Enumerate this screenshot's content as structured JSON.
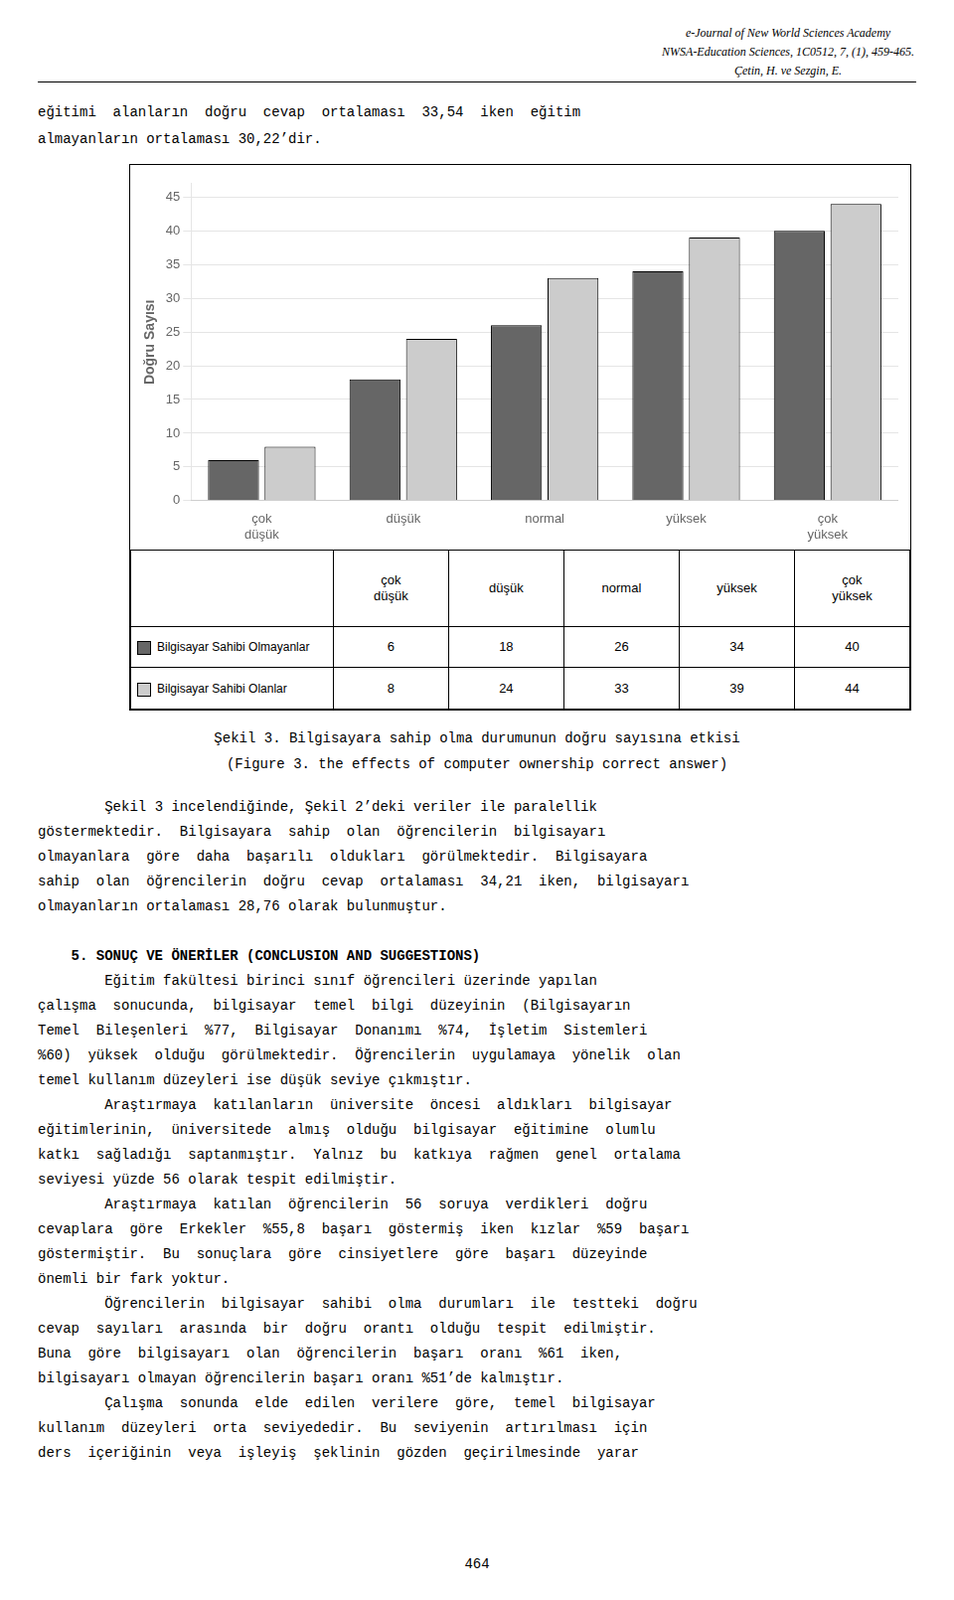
{
  "chart_data": {
    "type": "bar",
    "categories": [
      "çok\ndüşük",
      "düşük",
      "normal",
      "yüksek",
      "çok\nyüksek"
    ],
    "series": [
      {
        "name": "Bilgisayar Sahibi Olmayanlar",
        "color": "#666666",
        "values": [
          6,
          18,
          26,
          34,
          40
        ]
      },
      {
        "name": "Bilgisayar Sahibi Olanlar",
        "color": "#cccccc",
        "values": [
          8,
          24,
          33,
          39,
          44
        ]
      }
    ],
    "ylabel": "Doğru Sayısı",
    "ylim": [
      0,
      47
    ],
    "yticks": [
      0,
      5,
      10,
      15,
      20,
      25,
      30,
      35,
      40,
      45
    ],
    "grid": true,
    "annotations": {
      "header": [
        "e-Journal of New World Sciences Academy",
        "NWSA-Education Sciences, 1C0512, 7, (1), 459-465.",
        "Çetin, H. ve Sezgin, E."
      ],
      "intro": [
        "eğitimi  alanların  doğru  cevap  ortalaması  33,54  iken  eğitim",
        "almayanların ortalaması 30,22’dir."
      ],
      "caption": [
        "Şekil 3. Bilgisayara sahip olma durumunun doğru sayısına etkisi",
        "(Figure 3. the effects of computer ownership correct answer)"
      ],
      "body": [
        "\tŞekil 3 incelendiğinde, Şekil 2’deki veriler ile paralellik",
        "göstermektedir.  Bilgisayara  sahip  olan  öğrencilerin  bilgisayarı",
        "olmayanlara  göre  daha  başarılı  oldukları  görülmektedir.  Bilgisayara",
        "sahip  olan  öğrencilerin  doğru  cevap  ortalaması  34,21  iken,  bilgisayarı",
        "olmayanların ortalaması 28,76 olarak bulunmuştur."
      ],
      "heading": "    5. SONUÇ VE ÖNERİLER (CONCLUSION AND SUGGESTIONS)",
      "body2": [
        "\tEğitim fakültesi birinci sınıf öğrencileri üzerinde yapılan",
        "çalışma  sonucunda,  bilgisayar  temel  bilgi  düzeyinin  (Bilgisayarın",
        "Temel  Bileşenleri  %77,  Bilgisayar  Donanımı  %74,  İşletim  Sistemleri",
        "%60)  yüksek  olduğu  görülmektedir.  Öğrencilerin  uygulamaya  yönelik  olan",
        "temel kullanım düzeyleri ise düşük seviye çıkmıştır.",
        "\tAraştırmaya  katılanların  üniversite  öncesi  aldıkları  bilgisayar",
        "eğitimlerinin,  üniversitede  almış  olduğu  bilgisayar  eğitimine  olumlu",
        "katkı  sağladığı  saptanmıştır.  Yalnız  bu  katkıya  rağmen  genel  ortalama",
        "seviyesi yüzde 56 olarak tespit edilmiştir.",
        "\tAraştırmaya  katılan  öğrencilerin  56  soruya  verdikleri  doğru",
        "cevaplara  göre  Erkekler  %55,8  başarı  göstermiş  iken  kızlar  %59  başarı",
        "göstermiştir.  Bu  sonuçlara  göre  cinsiyetlere  göre  başarı  düzeyinde",
        "önemli bir fark yoktur.",
        "\tÖğrencilerin  bilgisayar  sahibi  olma  durumları  ile  testteki  doğru",
        "cevap  sayıları  arasında  bir  doğru  orantı  olduğu  tespit  edilmiştir.",
        "Buna  göre  bilgisayarı  olan  öğrencilerin  başarı  oranı  %61  iken,",
        "bilgisayarı olmayan öğrencilerin başarı oranı %51’de kalmıştır.",
        "\tÇalışma  sonunda  elde  edilen  verilere  göre,  temel  bilgisayar",
        "kullanım  düzeyleri  orta  seviyededir.  Bu  seviyenin  artırılması  için",
        "ders  içeriğinin  veya  işleyiş  şeklinin  gözden  geçirilmesinde  yarar"
      ],
      "page_number": "464"
    }
  }
}
